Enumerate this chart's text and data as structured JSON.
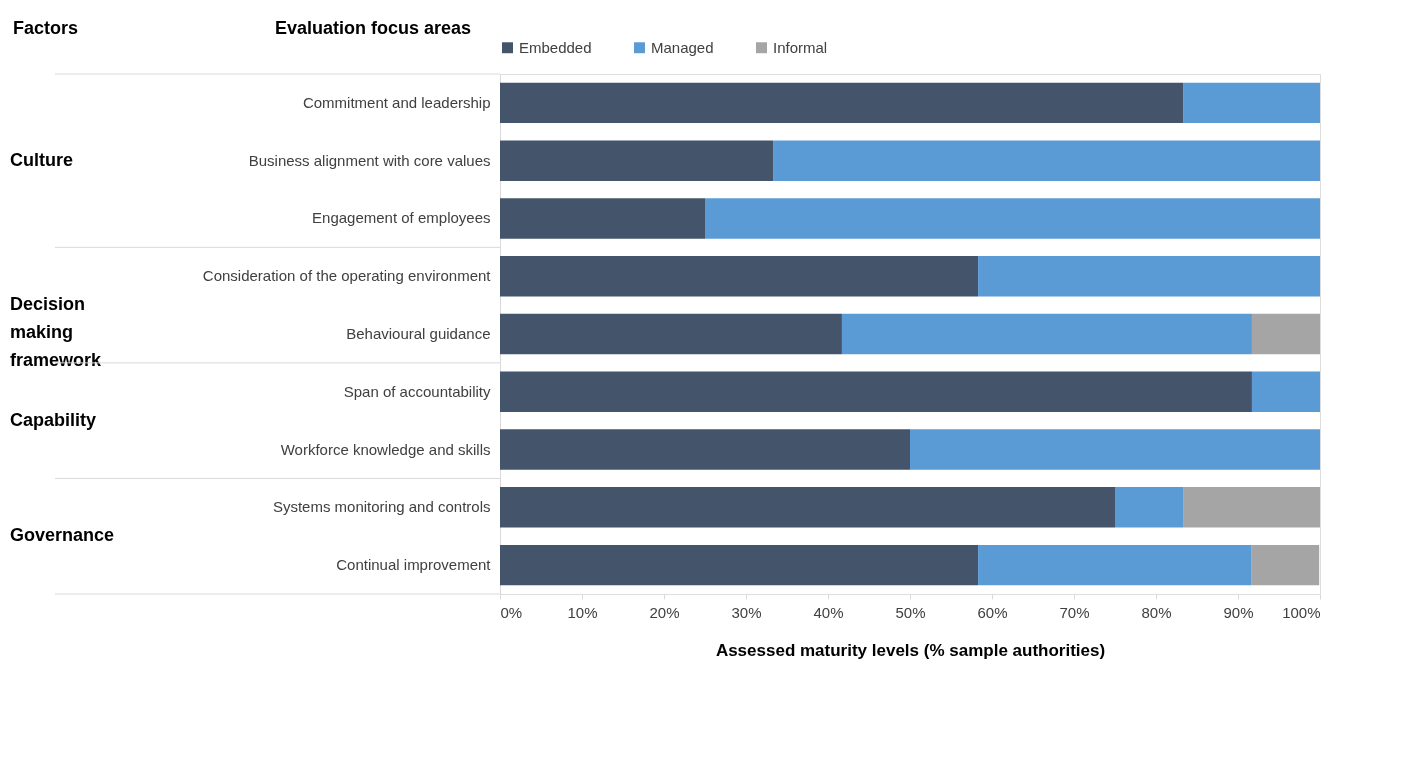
{
  "chart_data": {
    "type": "bar",
    "orientation": "horizontal",
    "stacked": true,
    "categories": [
      "Commitment and leadership",
      "Business alignment with core values",
      "Engagement of employees",
      "Consideration of the operating environment",
      "Behavioural guidance",
      "Span of accountability",
      "Workforce knowledge and skills",
      "Systems monitoring and controls",
      "Continual improvement"
    ],
    "series": [
      {
        "name": "Embedded",
        "color": "#44546a",
        "values": [
          83.3,
          33.3,
          25,
          58.3,
          41.7,
          91.7,
          50,
          75,
          58.3
        ]
      },
      {
        "name": "Managed",
        "color": "#5b9bd5",
        "values": [
          16.7,
          66.7,
          75,
          41.7,
          50,
          8.3,
          50,
          8.3,
          33.3
        ]
      },
      {
        "name": "Informal",
        "color": "#a5a5a5",
        "values": [
          0,
          0,
          0,
          0,
          8.3,
          0,
          0,
          16.7,
          8.3
        ]
      }
    ],
    "xlabel": "Assessed maturity levels (% sample authorities)",
    "xlim": [
      0,
      100
    ],
    "xticks": [
      {
        "value": 0,
        "label": "0%"
      },
      {
        "value": 10,
        "label": "10%"
      },
      {
        "value": 20,
        "label": "20%"
      },
      {
        "value": 30,
        "label": "30%"
      },
      {
        "value": 40,
        "label": "40%"
      },
      {
        "value": 50,
        "label": "50%"
      },
      {
        "value": 60,
        "label": "60%"
      },
      {
        "value": 70,
        "label": "70%"
      },
      {
        "value": 80,
        "label": "80%"
      },
      {
        "value": 90,
        "label": "90%"
      },
      {
        "value": 100,
        "label": "100%"
      }
    ],
    "annotations": [
      "Factors",
      "Evaluation focus areas",
      "Culture",
      "Decision making framework",
      "Capability",
      "Governance"
    ],
    "legend": "top",
    "grid": false
  }
}
